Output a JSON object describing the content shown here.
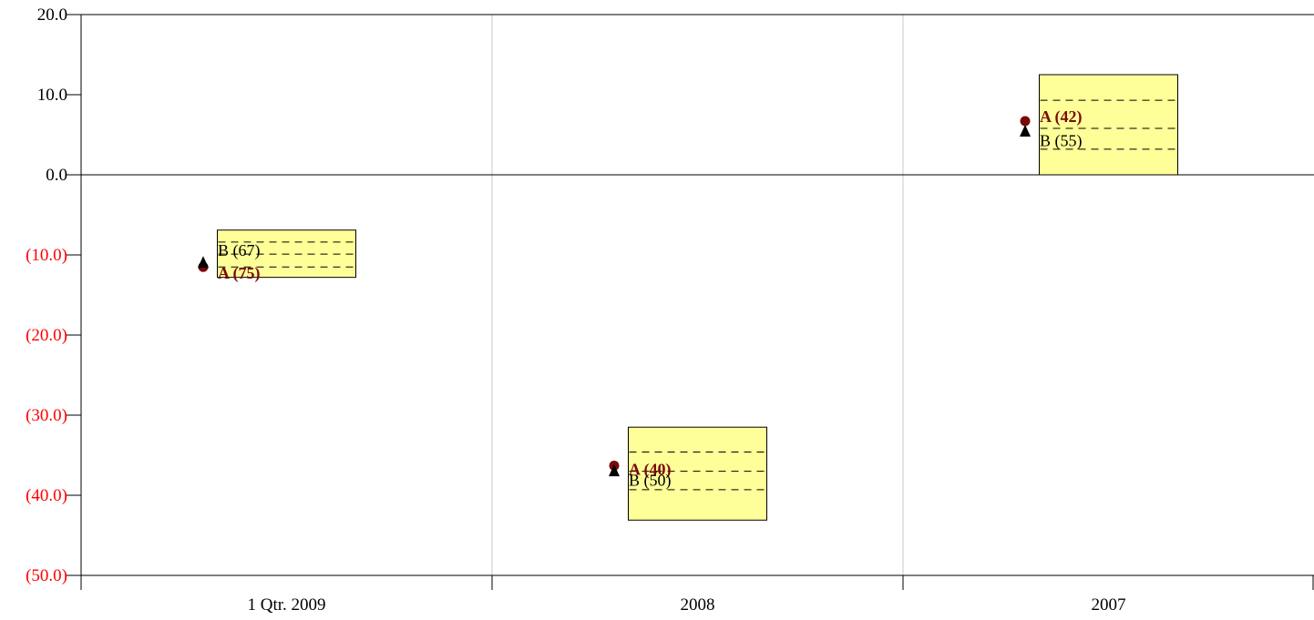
{
  "chart_data": {
    "type": "scatter",
    "title": "",
    "xlabel": "",
    "ylabel": "",
    "categories": [
      "1 Qtr. 2009",
      "2008",
      "2007"
    ],
    "ylim": [
      -50,
      20
    ],
    "y_ticks": [
      {
        "value": 20,
        "label": "20.0"
      },
      {
        "value": 10,
        "label": "10.0"
      },
      {
        "value": 0,
        "label": "0.0"
      },
      {
        "value": -10,
        "label": "(10.0)"
      },
      {
        "value": -20,
        "label": "(20.0)"
      },
      {
        "value": -30,
        "label": "(30.0)"
      },
      {
        "value": -40,
        "label": "(40.0)"
      },
      {
        "value": -50,
        "label": "(50.0)"
      }
    ],
    "grid": "vertical",
    "legend": "none",
    "boxes": [
      {
        "category": "1 Qtr. 2009",
        "low": -12.8,
        "high": -6.9,
        "lines": [
          -8.4,
          -9.9,
          -11.5
        ]
      },
      {
        "category": "2008",
        "low": -43.1,
        "high": -31.5,
        "lines": [
          -34.6,
          -37.0,
          -39.3
        ]
      },
      {
        "category": "2007",
        "low": 0,
        "high": 12.5,
        "lines": [
          9.3,
          5.8,
          3.2
        ]
      }
    ],
    "series": [
      {
        "name": "A",
        "marker": "circle",
        "color": "#7a0a0a",
        "points": [
          {
            "category": "1 Qtr. 2009",
            "y": -11.5,
            "label": "A (75)"
          },
          {
            "category": "2008",
            "y": -36.3,
            "label": "A (40)"
          },
          {
            "category": "2007",
            "y": 6.7,
            "label": "A (42)"
          }
        ]
      },
      {
        "name": "B",
        "marker": "triangle",
        "color": "#000000",
        "points": [
          {
            "category": "1 Qtr. 2009",
            "y": -11.0,
            "label": "B (67)"
          },
          {
            "category": "2008",
            "y": -37.0,
            "label": "B (50)"
          },
          {
            "category": "2007",
            "y": 5.4,
            "label": "B (55)"
          }
        ]
      }
    ],
    "colors": {
      "box_fill": "#ffff99",
      "positive_tick": "#000000",
      "negative_tick": "#ff0000",
      "grid": "#c8c8c8"
    }
  }
}
